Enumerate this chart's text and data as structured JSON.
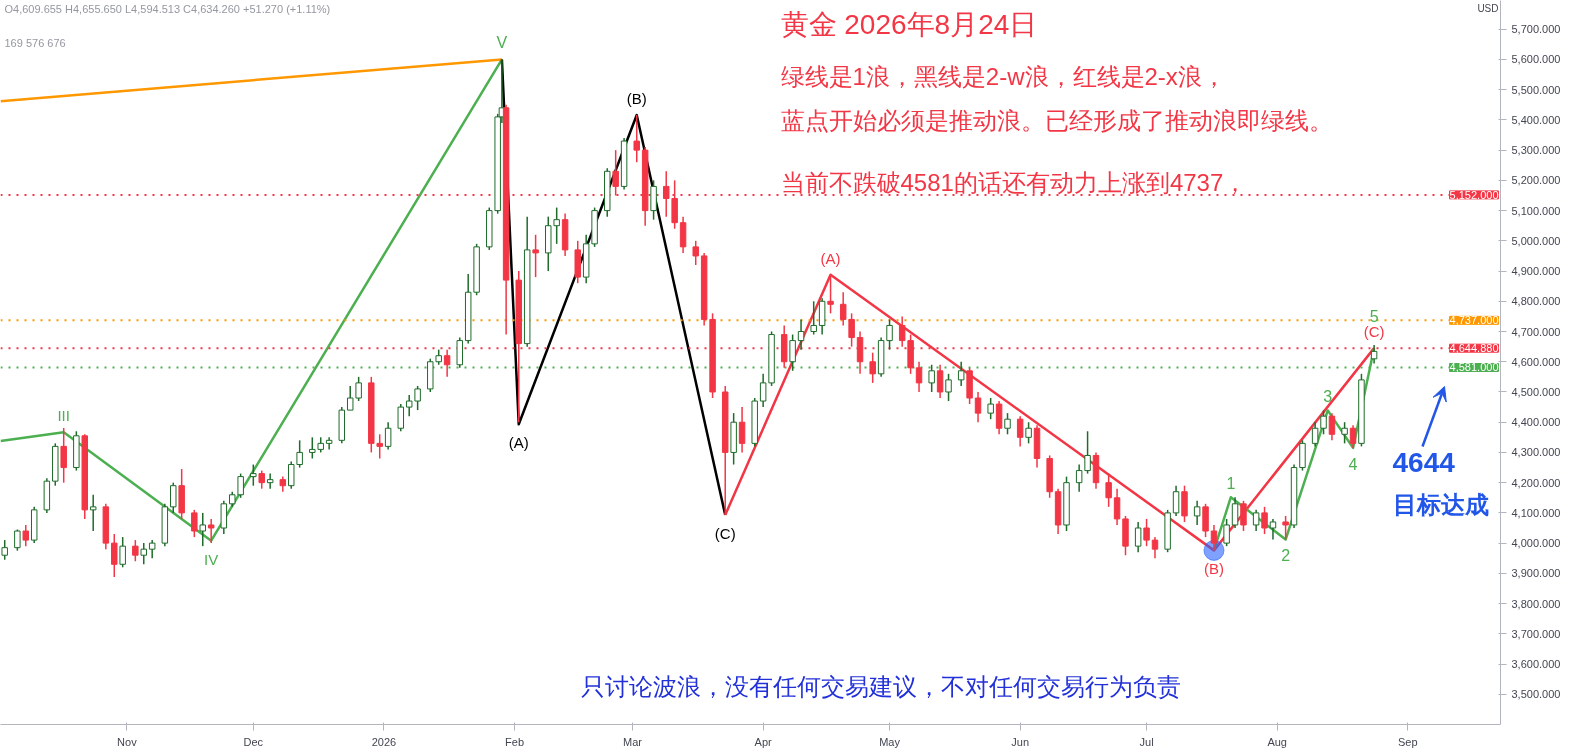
{
  "chart_data": {
    "type": "candlestick",
    "title": "黄金 2026年8月24日",
    "ylabel": "USD",
    "annotations": [
      "绿线是1浪，黑线是2-w浪，红线是2-x浪，",
      "蓝点开始必须是推动浪。已经形成了推动浪即绿线。",
      "当前不跌破4581的话还有动力上涨到4737，",
      "4644",
      "目标达成",
      "只讨论波浪，没有任何交易建议，不对任何交易行为负责",
      "O4,609.655 H4,655.650 L4,594.513 C4,634.260 +51.270 (+1.11%)",
      "169 576 676",
      {
        "text": "III",
        "x": "2025-10-17",
        "y": 4367
      },
      {
        "text": "IV",
        "x": "2025-11-21",
        "y": 4008
      },
      {
        "text": "V",
        "x": "2026-01-29",
        "y": 5600
      },
      {
        "text": "(A)",
        "x": "2026-02-02",
        "y": 4393
      },
      {
        "text": "(B)",
        "x": "2026-03-02",
        "y": 5416
      },
      {
        "text": "(C)",
        "x": "2026-03-23",
        "y": 4093
      },
      {
        "text": "(A)",
        "x": "2026-04-17",
        "y": 4888
      },
      {
        "text": "(B)",
        "x": "2026-07-17",
        "y": 3976
      },
      {
        "text": "1",
        "x": "2026-07-21",
        "y": 4152
      },
      {
        "text": "2",
        "x": "2026-08-03",
        "y": 4012
      },
      {
        "text": "3",
        "x": "2026-08-13",
        "y": 4439
      },
      {
        "text": "4",
        "x": "2026-08-19",
        "y": 4315
      },
      {
        "text": "(C)",
        "x": "2026-08-24",
        "y": 4645
      },
      {
        "text": "5",
        "x": "2026-08-24",
        "y": 4645
      }
    ],
    "xlim": [
      "2025-10-02",
      "2026-09-23"
    ],
    "ylim": [
      3400,
      5795
    ],
    "xticks": [
      {
        "value": "2025-11-01",
        "label": "Nov"
      },
      {
        "value": "2025-12-01",
        "label": "Dec"
      },
      {
        "value": "2026-01-01",
        "label": "2026"
      },
      {
        "value": "2026-02-01",
        "label": "Feb"
      },
      {
        "value": "2026-03-01",
        "label": "Mar"
      },
      {
        "value": "2026-04-01",
        "label": "Apr"
      },
      {
        "value": "2026-05-01",
        "label": "May"
      },
      {
        "value": "2026-06-01",
        "label": "Jun"
      },
      {
        "value": "2026-07-01",
        "label": "Jul"
      },
      {
        "value": "2026-08-01",
        "label": "Aug"
      },
      {
        "value": "2026-09-01",
        "label": "Sep"
      }
    ],
    "yticks": [
      {
        "value": 3500,
        "label": "3,500.000"
      },
      {
        "value": 3600,
        "label": "3,600.000"
      },
      {
        "value": 3700,
        "label": "3,700.000"
      },
      {
        "value": 3800,
        "label": "3,800.000"
      },
      {
        "value": 3900,
        "label": "3,900.000"
      },
      {
        "value": 4000,
        "label": "4,000.000"
      },
      {
        "value": 4100,
        "label": "4,100.000"
      },
      {
        "value": 4200,
        "label": "4,200.000"
      },
      {
        "value": 4300,
        "label": "4,300.000"
      },
      {
        "value": 4400,
        "label": "4,400.000"
      },
      {
        "value": 4500,
        "label": "4,500.000"
      },
      {
        "value": 4600,
        "label": "4,600.000"
      },
      {
        "value": 4700,
        "label": "4,700.000"
      },
      {
        "value": 4800,
        "label": "4,800.000"
      },
      {
        "value": 4900,
        "label": "4,900.000"
      },
      {
        "value": 5000,
        "label": "5,000.000"
      },
      {
        "value": 5100,
        "label": "5,100.000"
      },
      {
        "value": 5200,
        "label": "5,200.000"
      },
      {
        "value": 5300,
        "label": "5,300.000"
      },
      {
        "value": 5400,
        "label": "5,400.000"
      },
      {
        "value": 5500,
        "label": "5,500.000"
      },
      {
        "value": 5600,
        "label": "5,600.000"
      },
      {
        "value": 5700,
        "label": "5,700.000"
      }
    ],
    "ref_lines": [
      {
        "axis": "y",
        "value": 5152,
        "label": "5,152.000",
        "color": "#f23645",
        "line_style": "dotted"
      },
      {
        "axis": "y",
        "value": 4737,
        "label": "4,737.000",
        "color": "#ff9800",
        "line_style": "dotted"
      },
      {
        "axis": "y",
        "value": 4644.88,
        "label": "4,644.880",
        "color": "#f23645",
        "line_style": "dotted"
      },
      {
        "axis": "y",
        "value": 4581,
        "label": "4,581.000",
        "color": "#4caf50",
        "line_style": "dotted"
      }
    ],
    "series": [
      {
        "type": "line",
        "color": "#4caf50",
        "x": [
          "2025-10-02",
          "2025-10-17",
          "2025-11-21",
          "2026-01-29"
        ],
        "values": [
          4338,
          4367,
          4008,
          5600
        ]
      },
      {
        "type": "line",
        "color": "#ff9800",
        "x": [
          "2025-10-02",
          "2026-01-29"
        ],
        "values": [
          5462,
          5600
        ]
      },
      {
        "type": "line",
        "color": "#000000",
        "x": [
          "2026-01-29",
          "2026-02-02",
          "2026-03-02",
          "2026-03-23"
        ],
        "values": [
          5600,
          4393,
          5416,
          4093
        ]
      },
      {
        "type": "line",
        "color": "#f23645",
        "x": [
          "2026-03-23",
          "2026-04-17",
          "2026-07-17",
          "2026-08-24"
        ],
        "values": [
          4093,
          4888,
          3976,
          4645
        ]
      },
      {
        "type": "line",
        "color": "#4caf50",
        "x": [
          "2026-07-17",
          "2026-07-21",
          "2026-08-03",
          "2026-08-13",
          "2026-08-19",
          "2026-08-24"
        ],
        "values": [
          3976,
          4152,
          4012,
          4439,
          4315,
          4645
        ]
      },
      {
        "type": "scatter",
        "color": "#2962ff",
        "x": [
          "2026-07-17"
        ],
        "values": [
          3976
        ]
      }
    ],
    "x": [
      "2025-10-03",
      "2025-10-06",
      "2025-10-08",
      "2025-10-10",
      "2025-10-13",
      "2025-10-15",
      "2025-10-17",
      "2025-10-20",
      "2025-10-22",
      "2025-10-24",
      "2025-10-27",
      "2025-10-29",
      "2025-10-31",
      "2025-11-03",
      "2025-11-05",
      "2025-11-07",
      "2025-11-10",
      "2025-11-12",
      "2025-11-14",
      "2025-11-17",
      "2025-11-19",
      "2025-11-21",
      "2025-11-24",
      "2025-11-26",
      "2025-11-28",
      "2025-12-01",
      "2025-12-03",
      "2025-12-05",
      "2025-12-08",
      "2025-12-10",
      "2025-12-12",
      "2025-12-15",
      "2025-12-17",
      "2025-12-19",
      "2025-12-22",
      "2025-12-24",
      "2025-12-26",
      "2025-12-29",
      "2025-12-31",
      "2026-01-02",
      "2026-01-05",
      "2026-01-07",
      "2026-01-09",
      "2026-01-12",
      "2026-01-14",
      "2026-01-16",
      "2026-01-19",
      "2026-01-21",
      "2026-01-23",
      "2026-01-26",
      "2026-01-28",
      "2026-01-29",
      "2026-01-30",
      "2026-02-02",
      "2026-02-04",
      "2026-02-06",
      "2026-02-09",
      "2026-02-11",
      "2026-02-13",
      "2026-02-16",
      "2026-02-18",
      "2026-02-20",
      "2026-02-23",
      "2026-02-25",
      "2026-02-27",
      "2026-03-02",
      "2026-03-04",
      "2026-03-06",
      "2026-03-09",
      "2026-03-11",
      "2026-03-13",
      "2026-03-16",
      "2026-03-18",
      "2026-03-20",
      "2026-03-23",
      "2026-03-25",
      "2026-03-27",
      "2026-03-30",
      "2026-04-01",
      "2026-04-03",
      "2026-04-06",
      "2026-04-08",
      "2026-04-10",
      "2026-04-13",
      "2026-04-15",
      "2026-04-17",
      "2026-04-20",
      "2026-04-22",
      "2026-04-24",
      "2026-04-27",
      "2026-04-29",
      "2026-05-01",
      "2026-05-04",
      "2026-05-06",
      "2026-05-08",
      "2026-05-11",
      "2026-05-13",
      "2026-05-15",
      "2026-05-18",
      "2026-05-20",
      "2026-05-22",
      "2026-05-25",
      "2026-05-27",
      "2026-05-29",
      "2026-06-01",
      "2026-06-03",
      "2026-06-05",
      "2026-06-08",
      "2026-06-10",
      "2026-06-12",
      "2026-06-15",
      "2026-06-17",
      "2026-06-19",
      "2026-06-22",
      "2026-06-24",
      "2026-06-26",
      "2026-06-29",
      "2026-07-01",
      "2026-07-03",
      "2026-07-06",
      "2026-07-08",
      "2026-07-10",
      "2026-07-13",
      "2026-07-15",
      "2026-07-17",
      "2026-07-20",
      "2026-07-22",
      "2026-07-24",
      "2026-07-27",
      "2026-07-29",
      "2026-07-31",
      "2026-08-03",
      "2026-08-05",
      "2026-08-07",
      "2026-08-10",
      "2026-08-12",
      "2026-08-14",
      "2026-08-17",
      "2026-08-19",
      "2026-08-21",
      "2026-08-24"
    ],
    "ohlc": [
      [
        3960,
        4010,
        3945,
        3985
      ],
      [
        3985,
        4045,
        3975,
        4040
      ],
      [
        4040,
        4060,
        3990,
        4010
      ],
      [
        4010,
        4120,
        4000,
        4110
      ],
      [
        4110,
        4215,
        4100,
        4205
      ],
      [
        4205,
        4330,
        4190,
        4320
      ],
      [
        4320,
        4381,
        4200,
        4250
      ],
      [
        4250,
        4370,
        4240,
        4355
      ],
      [
        4355,
        4360,
        4080,
        4110
      ],
      [
        4110,
        4160,
        4040,
        4120
      ],
      [
        4120,
        4130,
        3980,
        4000
      ],
      [
        4000,
        4030,
        3888,
        3930
      ],
      [
        3930,
        4020,
        3920,
        3990
      ],
      [
        3990,
        4010,
        3940,
        3960
      ],
      [
        3960,
        4000,
        3930,
        3980
      ],
      [
        3980,
        4010,
        3950,
        4000
      ],
      [
        4000,
        4130,
        3990,
        4120
      ],
      [
        4120,
        4200,
        4100,
        4190
      ],
      [
        4190,
        4245,
        4080,
        4100
      ],
      [
        4100,
        4110,
        4020,
        4040
      ],
      [
        4040,
        4100,
        3990,
        4060
      ],
      [
        4060,
        4080,
        4000,
        4050
      ],
      [
        4050,
        4140,
        4030,
        4130
      ],
      [
        4130,
        4170,
        4120,
        4160
      ],
      [
        4160,
        4230,
        4150,
        4220
      ],
      [
        4220,
        4260,
        4190,
        4230
      ],
      [
        4230,
        4240,
        4180,
        4200
      ],
      [
        4200,
        4230,
        4180,
        4210
      ],
      [
        4210,
        4220,
        4170,
        4190
      ],
      [
        4190,
        4270,
        4180,
        4260
      ],
      [
        4260,
        4340,
        4250,
        4300
      ],
      [
        4300,
        4350,
        4280,
        4310
      ],
      [
        4310,
        4350,
        4300,
        4330
      ],
      [
        4330,
        4350,
        4310,
        4340
      ],
      [
        4340,
        4450,
        4330,
        4440
      ],
      [
        4440,
        4520,
        4440,
        4480
      ],
      [
        4480,
        4550,
        4470,
        4530
      ],
      [
        4530,
        4550,
        4300,
        4330
      ],
      [
        4330,
        4360,
        4280,
        4320
      ],
      [
        4320,
        4400,
        4310,
        4380
      ],
      [
        4380,
        4460,
        4370,
        4450
      ],
      [
        4450,
        4490,
        4420,
        4470
      ],
      [
        4470,
        4520,
        4440,
        4510
      ],
      [
        4510,
        4610,
        4500,
        4600
      ],
      [
        4600,
        4640,
        4590,
        4620
      ],
      [
        4620,
        4640,
        4550,
        4590
      ],
      [
        4590,
        4680,
        4580,
        4670
      ],
      [
        4670,
        4890,
        4660,
        4830
      ],
      [
        4830,
        4990,
        4820,
        4980
      ],
      [
        4980,
        5110,
        4970,
        5100
      ],
      [
        5100,
        5420,
        5090,
        5410
      ],
      [
        5410,
        5600,
        5390,
        5440
      ],
      [
        5440,
        5450,
        4690,
        4870
      ],
      [
        4870,
        4900,
        4400,
        4660
      ],
      [
        4660,
        5080,
        4650,
        4970
      ],
      [
        4970,
        5020,
        4880,
        4960
      ],
      [
        4960,
        5080,
        4900,
        5050
      ],
      [
        5050,
        5110,
        4990,
        5070
      ],
      [
        5070,
        5090,
        4950,
        4970
      ],
      [
        4970,
        5000,
        4860,
        4880
      ],
      [
        4880,
        5020,
        4860,
        4990
      ],
      [
        4990,
        5110,
        4980,
        5100
      ],
      [
        5100,
        5240,
        5080,
        5230
      ],
      [
        5230,
        5300,
        5150,
        5180
      ],
      [
        5180,
        5340,
        5170,
        5330
      ],
      [
        5330,
        5416,
        5260,
        5300
      ],
      [
        5300,
        5310,
        5050,
        5100
      ],
      [
        5100,
        5200,
        5070,
        5180
      ],
      [
        5180,
        5230,
        5080,
        5140
      ],
      [
        5140,
        5200,
        5040,
        5060
      ],
      [
        5060,
        5080,
        4960,
        4980
      ],
      [
        4980,
        5000,
        4920,
        4950
      ],
      [
        4950,
        4960,
        4720,
        4740
      ],
      [
        4740,
        4760,
        4480,
        4500
      ],
      [
        4500,
        4520,
        4093,
        4300
      ],
      [
        4300,
        4430,
        4260,
        4400
      ],
      [
        4400,
        4450,
        4300,
        4330
      ],
      [
        4330,
        4480,
        4320,
        4470
      ],
      [
        4470,
        4560,
        4450,
        4530
      ],
      [
        4530,
        4700,
        4520,
        4690
      ],
      [
        4690,
        4720,
        4580,
        4600
      ],
      [
        4600,
        4690,
        4570,
        4670
      ],
      [
        4670,
        4740,
        4640,
        4700
      ],
      [
        4700,
        4800,
        4690,
        4720
      ],
      [
        4720,
        4810,
        4690,
        4800
      ],
      [
        4800,
        4888,
        4760,
        4790
      ],
      [
        4790,
        4830,
        4720,
        4740
      ],
      [
        4740,
        4760,
        4650,
        4680
      ],
      [
        4680,
        4700,
        4560,
        4600
      ],
      [
        4600,
        4630,
        4530,
        4560
      ],
      [
        4560,
        4680,
        4550,
        4670
      ],
      [
        4670,
        4740,
        4640,
        4720
      ],
      [
        4720,
        4750,
        4650,
        4670
      ],
      [
        4670,
        4690,
        4560,
        4580
      ],
      [
        4580,
        4600,
        4500,
        4530
      ],
      [
        4530,
        4590,
        4500,
        4570
      ],
      [
        4570,
        4590,
        4480,
        4500
      ],
      [
        4500,
        4560,
        4470,
        4540
      ],
      [
        4540,
        4600,
        4520,
        4570
      ],
      [
        4570,
        4580,
        4460,
        4480
      ],
      [
        4480,
        4500,
        4400,
        4430
      ],
      [
        4430,
        4480,
        4410,
        4460
      ],
      [
        4460,
        4470,
        4360,
        4380
      ],
      [
        4380,
        4430,
        4360,
        4410
      ],
      [
        4410,
        4420,
        4320,
        4350
      ],
      [
        4350,
        4400,
        4330,
        4380
      ],
      [
        4380,
        4390,
        4250,
        4280
      ],
      [
        4280,
        4290,
        4150,
        4170
      ],
      [
        4170,
        4180,
        4030,
        4060
      ],
      [
        4060,
        4220,
        4040,
        4200
      ],
      [
        4200,
        4260,
        4170,
        4240
      ],
      [
        4240,
        4370,
        4230,
        4290
      ],
      [
        4290,
        4300,
        4180,
        4200
      ],
      [
        4200,
        4230,
        4120,
        4150
      ],
      [
        4150,
        4180,
        4060,
        4080
      ],
      [
        4080,
        4090,
        3960,
        3990
      ],
      [
        3990,
        4070,
        3970,
        4050
      ],
      [
        4050,
        4080,
        3990,
        4010
      ],
      [
        4010,
        4020,
        3950,
        3980
      ],
      [
        3980,
        4110,
        3970,
        4100
      ],
      [
        4100,
        4190,
        4090,
        4170
      ],
      [
        4170,
        4190,
        4070,
        4090
      ],
      [
        4090,
        4140,
        4060,
        4120
      ],
      [
        4120,
        4130,
        4020,
        4040
      ],
      [
        4040,
        4060,
        3976,
        4000
      ],
      [
        4000,
        4080,
        3990,
        4060
      ],
      [
        4060,
        4152,
        4050,
        4130
      ],
      [
        4130,
        4140,
        4040,
        4060
      ],
      [
        4060,
        4110,
        4040,
        4100
      ],
      [
        4100,
        4120,
        4030,
        4050
      ],
      [
        4050,
        4080,
        4012,
        4070
      ],
      [
        4070,
        4090,
        4012,
        4060
      ],
      [
        4060,
        4260,
        4050,
        4250
      ],
      [
        4250,
        4340,
        4240,
        4330
      ],
      [
        4330,
        4400,
        4320,
        4380
      ],
      [
        4380,
        4439,
        4360,
        4420
      ],
      [
        4420,
        4430,
        4340,
        4360
      ],
      [
        4360,
        4400,
        4330,
        4380
      ],
      [
        4380,
        4390,
        4315,
        4330
      ],
      [
        4330,
        4560,
        4320,
        4540
      ],
      [
        4609.655,
        4655.65,
        4594.513,
        4634.26
      ]
    ]
  }
}
